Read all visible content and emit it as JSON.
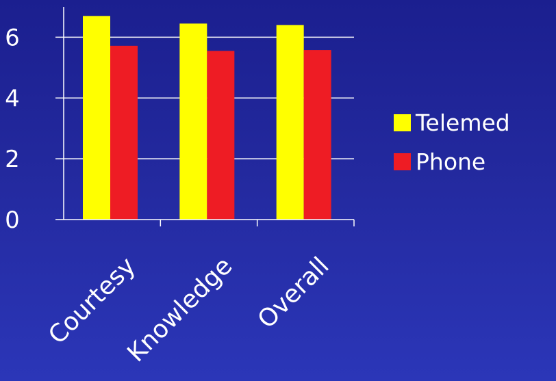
{
  "chart_data": {
    "type": "bar",
    "categories": [
      "Courtesy",
      "Knowledge",
      "Overall"
    ],
    "series": [
      {
        "name": "Telemed",
        "color": "#ffff00",
        "values": [
          6.7,
          6.45,
          6.4
        ]
      },
      {
        "name": "Phone",
        "color": "#ee1c24",
        "values": [
          5.72,
          5.55,
          5.58
        ]
      }
    ],
    "y_ticks": [
      "0",
      "2",
      "4",
      "6"
    ],
    "ylim": [
      0,
      7
    ],
    "grid": true,
    "legend_position": "right",
    "colors": {
      "axis": "#ffffff",
      "text": "#ffffff",
      "background": "#23299e"
    }
  }
}
